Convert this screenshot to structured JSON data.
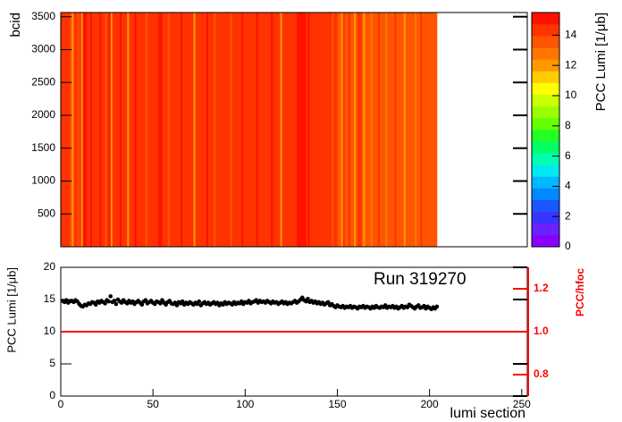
{
  "chart_data": [
    {
      "type": "heatmap",
      "ylabel": "bcid",
      "zlabel": "PCC Lumi [1/μb]",
      "x": [
        1,
        2,
        3,
        4,
        5,
        6,
        7,
        8,
        9,
        10,
        11,
        12,
        13,
        14,
        15,
        16,
        17,
        18,
        19,
        20,
        21,
        22,
        23,
        24,
        25,
        26,
        27,
        28,
        29,
        30,
        31,
        32,
        33,
        34,
        35,
        36,
        37,
        38,
        39,
        40,
        41,
        42,
        43,
        44,
        45,
        46,
        47,
        48,
        49,
        50,
        51,
        52,
        53,
        54,
        55,
        56,
        57,
        58,
        59,
        60,
        61,
        62,
        63,
        64,
        65,
        66,
        67,
        68,
        69,
        70,
        71,
        72,
        73,
        74,
        75,
        76,
        77,
        78,
        79,
        80,
        81,
        82,
        83,
        84,
        85,
        86,
        87,
        88,
        89,
        90,
        91,
        92,
        93,
        94,
        95,
        96,
        97,
        98,
        99,
        100,
        101,
        102,
        103,
        104,
        105,
        106,
        107,
        108,
        109,
        110,
        111,
        112,
        113,
        114,
        115,
        116,
        117,
        118,
        119,
        120,
        121,
        122,
        123,
        124,
        125,
        126,
        127,
        128,
        129,
        130,
        131,
        132,
        133,
        134,
        135,
        136,
        137,
        138,
        139,
        140,
        141,
        142,
        143,
        144,
        145,
        146,
        147,
        148,
        149,
        150,
        151,
        152,
        153,
        154,
        155,
        156,
        157,
        158,
        159,
        160,
        161,
        162,
        163,
        164,
        165,
        166,
        167,
        168,
        169,
        170,
        171,
        172,
        173,
        174,
        175,
        176,
        177,
        178,
        179,
        180,
        181,
        182,
        183,
        184,
        185,
        186,
        187,
        188,
        189,
        190,
        191,
        192,
        193,
        194,
        195,
        196,
        197,
        198,
        199,
        200,
        201,
        202,
        203,
        204
      ],
      "z": [
        14.5,
        14.5,
        14.5,
        14.5,
        14.5,
        13.9,
        12.2,
        14.5,
        14.5,
        13.9,
        14.5,
        12.2,
        14.9,
        14.9,
        14.5,
        14.5,
        14.9,
        14.5,
        14.5,
        14.5,
        14.5,
        14.9,
        14.5,
        14.5,
        13.9,
        14.5,
        14.9,
        12.2,
        14.5,
        14.5,
        14.5,
        14.5,
        14.9,
        14.5,
        14.5,
        14.5,
        12.2,
        14.5,
        14.5,
        14.5,
        14.9,
        14.5,
        14.5,
        14.5,
        14.5,
        14.5,
        13.9,
        14.5,
        14.5,
        14.5,
        14.5,
        14.5,
        14.5,
        14.9,
        14.9,
        14.5,
        14.5,
        14.5,
        13.9,
        14.5,
        14.5,
        14.5,
        14.5,
        14.5,
        14.5,
        14.9,
        14.5,
        14.5,
        14.5,
        14.5,
        14.5,
        14.5,
        12.2,
        14.5,
        14.5,
        14.5,
        14.5,
        14.5,
        14.5,
        14.9,
        14.5,
        14.5,
        14.5,
        13.9,
        14.5,
        14.5,
        14.5,
        14.5,
        14.5,
        14.5,
        14.5,
        14.5,
        13.9,
        14.5,
        14.5,
        14.5,
        14.5,
        14.5,
        14.9,
        14.5,
        14.5,
        14.5,
        14.5,
        14.5,
        14.5,
        14.5,
        14.9,
        14.5,
        14.5,
        14.5,
        14.5,
        14.5,
        14.5,
        14.5,
        14.9,
        14.5,
        14.5,
        14.5,
        14.5,
        12.2,
        14.5,
        14.5,
        14.5,
        14.5,
        14.5,
        14.5,
        14.5,
        14.5,
        14.9,
        14.9,
        14.9,
        14.9,
        14.9,
        14.5,
        14.9,
        14.5,
        14.5,
        14.5,
        14.5,
        14.5,
        14.5,
        14.5,
        14.5,
        14.5,
        14.5,
        14.5,
        14.5,
        13.9,
        14.5,
        14.5,
        13.9,
        13.9,
        12.2,
        14.5,
        13.9,
        13.9,
        14.5,
        13.9,
        13.9,
        12.2,
        13.9,
        14.5,
        14.5,
        13.9,
        12.2,
        13.9,
        13.9,
        13.9,
        12.9,
        13.9,
        13.9,
        13.9,
        14.5,
        13.9,
        13.9,
        13.9,
        12.9,
        13.9,
        13.9,
        13.9,
        13.9,
        14.5,
        13.9,
        13.9,
        13.9,
        13.9,
        12.2,
        13.9,
        13.9,
        13.9,
        13.9,
        13.9,
        12.9,
        13.9,
        13.9,
        14.5,
        13.9,
        13.9,
        13.9,
        13.9,
        13.9,
        13.9,
        13.9,
        13.9
      ],
      "xlim": [
        0,
        253
      ],
      "ylim": [
        0,
        3564
      ],
      "yticks": [
        500,
        1000,
        1500,
        2000,
        2500,
        3000,
        3500
      ],
      "zlim": [
        0,
        15.5
      ],
      "zticks": [
        0,
        2,
        4,
        6,
        8,
        10,
        12,
        14
      ],
      "palette": [
        "#8a00ff",
        "#6a22ff",
        "#3a33ff",
        "#1a55ff",
        "#0088ff",
        "#00b8ff",
        "#00e8f0",
        "#00ffb0",
        "#00ff66",
        "#22ff22",
        "#66ff00",
        "#99ff00",
        "#ccff00",
        "#ffff00",
        "#ffcc00",
        "#ff9900",
        "#ff7700",
        "#ff5500",
        "#ff3300",
        "#ff1100"
      ]
    },
    {
      "type": "scatter",
      "xlabel": "lumi section",
      "ylabel": "PCC Lumi [1/μb]",
      "y2label": "PCC/hfoc",
      "annotation": "Run 319270",
      "x": [
        1,
        2,
        3,
        4,
        5,
        6,
        7,
        8,
        9,
        10,
        11,
        12,
        13,
        14,
        15,
        16,
        17,
        18,
        19,
        20,
        21,
        22,
        23,
        24,
        25,
        26,
        27,
        28,
        29,
        30,
        31,
        32,
        33,
        34,
        35,
        36,
        37,
        38,
        39,
        40,
        41,
        42,
        43,
        44,
        45,
        46,
        47,
        48,
        49,
        50,
        51,
        52,
        53,
        54,
        55,
        56,
        57,
        58,
        59,
        60,
        61,
        62,
        63,
        64,
        65,
        66,
        67,
        68,
        69,
        70,
        71,
        72,
        73,
        74,
        75,
        76,
        77,
        78,
        79,
        80,
        81,
        82,
        83,
        84,
        85,
        86,
        87,
        88,
        89,
        90,
        91,
        92,
        93,
        94,
        95,
        96,
        97,
        98,
        99,
        100,
        101,
        102,
        103,
        104,
        105,
        106,
        107,
        108,
        109,
        110,
        111,
        112,
        113,
        114,
        115,
        116,
        117,
        118,
        119,
        120,
        121,
        122,
        123,
        124,
        125,
        126,
        127,
        128,
        129,
        130,
        131,
        132,
        133,
        134,
        135,
        136,
        137,
        138,
        139,
        140,
        141,
        142,
        143,
        144,
        145,
        146,
        147,
        148,
        149,
        150,
        151,
        152,
        153,
        154,
        155,
        156,
        157,
        158,
        159,
        160,
        161,
        162,
        163,
        164,
        165,
        166,
        167,
        168,
        169,
        170,
        171,
        172,
        173,
        174,
        175,
        176,
        177,
        178,
        179,
        180,
        181,
        182,
        183,
        184,
        185,
        186,
        187,
        188,
        189,
        190,
        191,
        192,
        193,
        194,
        195,
        196,
        197,
        198,
        199,
        200,
        201,
        202,
        203,
        204
      ],
      "values": [
        14.8,
        14.6,
        14.9,
        14.5,
        14.7,
        14.8,
        14.6,
        14.9,
        14.7,
        14.3,
        14.0,
        13.9,
        14.2,
        14.1,
        14.4,
        14.3,
        14.6,
        14.5,
        14.2,
        14.7,
        14.5,
        14.8,
        14.6,
        14.4,
        14.9,
        14.7,
        15.5,
        14.6,
        14.8,
        14.3,
        15.0,
        14.7,
        14.5,
        14.9,
        14.6,
        14.4,
        14.8,
        14.5,
        14.7,
        14.3,
        14.6,
        14.8,
        14.5,
        14.2,
        14.7,
        14.9,
        14.4,
        14.6,
        14.8,
        14.5,
        14.3,
        14.7,
        14.6,
        14.4,
        14.9,
        14.5,
        14.2,
        14.6,
        14.8,
        14.4,
        14.3,
        14.5,
        14.1,
        14.6,
        14.4,
        14.7,
        14.2,
        14.5,
        14.3,
        14.6,
        14.4,
        14.2,
        14.5,
        14.3,
        14.7,
        14.1,
        14.4,
        14.6,
        14.3,
        14.5,
        14.2,
        14.4,
        14.6,
        14.3,
        14.5,
        14.1,
        14.4,
        14.2,
        14.6,
        14.3,
        14.5,
        14.4,
        14.2,
        14.6,
        14.3,
        14.5,
        14.4,
        14.7,
        14.3,
        14.6,
        14.5,
        14.8,
        14.4,
        14.6,
        14.7,
        14.9,
        14.5,
        14.8,
        14.6,
        14.7,
        14.5,
        14.8,
        14.6,
        14.4,
        14.7,
        14.5,
        14.6,
        14.3,
        14.5,
        14.7,
        14.4,
        14.6,
        14.3,
        14.5,
        14.4,
        14.6,
        14.8,
        14.5,
        14.7,
        15.0,
        15.3,
        14.9,
        14.7,
        15.1,
        14.6,
        14.8,
        14.5,
        14.7,
        14.4,
        14.6,
        14.3,
        14.5,
        14.2,
        14.4,
        14.6,
        14.1,
        14.3,
        14.0,
        13.8,
        14.1,
        13.9,
        13.8,
        14.0,
        13.7,
        13.9,
        13.8,
        14.0,
        13.7,
        13.9,
        13.8,
        13.6,
        13.9,
        13.8,
        14.0,
        13.7,
        13.9,
        13.8,
        13.6,
        13.9,
        13.7,
        14.0,
        13.8,
        13.7,
        13.9,
        13.8,
        14.1,
        13.7,
        13.9,
        13.8,
        14.0,
        13.7,
        13.9,
        13.6,
        13.8,
        14.0,
        13.7,
        13.9,
        13.8,
        14.2,
        14.0,
        13.8,
        13.6,
        13.9,
        14.1,
        13.7,
        13.8,
        14.0,
        13.6,
        13.9,
        13.7,
        13.5,
        13.8,
        13.6,
        13.9
      ],
      "color": "#000000",
      "xlim": [
        0,
        253
      ],
      "xticks": [
        0,
        50,
        100,
        150,
        200,
        250
      ],
      "ylim": [
        0,
        20
      ],
      "yticks": [
        0,
        5,
        10,
        15,
        20
      ],
      "y2lim": [
        0.7,
        1.3
      ],
      "y2ticks": [
        {
          "value": 0.8,
          "label": "0.8"
        },
        {
          "value": 1,
          "label": "1.0"
        },
        {
          "value": 1.2,
          "label": "1.2"
        }
      ],
      "y2color": "#ff0000",
      "reference_line": {
        "value": 1,
        "axis": "y2",
        "color": "#ff0000"
      }
    }
  ]
}
